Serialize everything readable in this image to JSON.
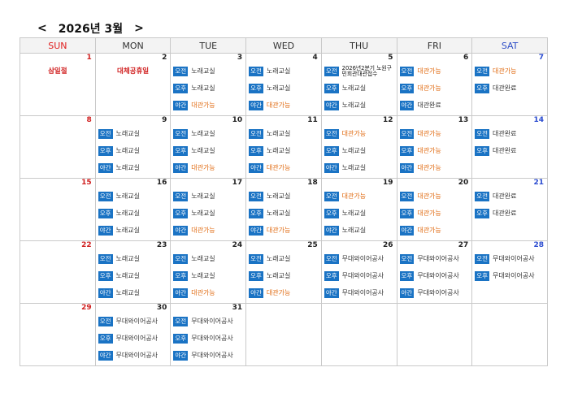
{
  "header": {
    "prev": "<",
    "title": "2026년 3월",
    "next": ">"
  },
  "colors": {
    "accent": "#1a73c4",
    "available": "#e06a10",
    "sunday": "#d01f1f",
    "saturday": "#2a4bd0"
  },
  "weekdays": [
    "SUN",
    "MON",
    "TUE",
    "WED",
    "THU",
    "FRI",
    "SAT"
  ],
  "weeks": [
    [
      {
        "day": "1",
        "note": "삼일절",
        "slots": []
      },
      {
        "day": "2",
        "note": "대체공휴일",
        "slots": []
      },
      {
        "day": "3",
        "slots": [
          {
            "b": "오전",
            "t": "노래교실",
            "k": "room"
          },
          {
            "b": "오후",
            "t": "노래교실",
            "k": "room"
          },
          {
            "b": "야간",
            "t": "대관가능",
            "k": "avail"
          }
        ]
      },
      {
        "day": "4",
        "slots": [
          {
            "b": "오전",
            "t": "노래교실",
            "k": "room"
          },
          {
            "b": "오후",
            "t": "노래교실",
            "k": "room"
          },
          {
            "b": "야간",
            "t": "대관가능",
            "k": "avail"
          }
        ]
      },
      {
        "day": "5",
        "slots": [
          {
            "b": "오전",
            "t": "2026년2분기 노원구민회관대관접수",
            "k": "notice"
          },
          {
            "b": "오후",
            "t": "노래교실",
            "k": "room"
          },
          {
            "b": "야간",
            "t": "노래교실",
            "k": "room"
          }
        ]
      },
      {
        "day": "6",
        "slots": [
          {
            "b": "오전",
            "t": "대관가능",
            "k": "avail"
          },
          {
            "b": "오후",
            "t": "대관가능",
            "k": "avail"
          },
          {
            "b": "야간",
            "t": "대관완료",
            "k": "done"
          }
        ]
      },
      {
        "day": "7",
        "slots": [
          {
            "b": "오전",
            "t": "대관가능",
            "k": "avail"
          },
          {
            "b": "오후",
            "t": "대관완료",
            "k": "done"
          }
        ]
      }
    ],
    [
      {
        "day": "8",
        "slots": []
      },
      {
        "day": "9",
        "slots": [
          {
            "b": "오전",
            "t": "노래교실",
            "k": "room"
          },
          {
            "b": "오후",
            "t": "노래교실",
            "k": "room"
          },
          {
            "b": "야간",
            "t": "노래교실",
            "k": "room"
          }
        ]
      },
      {
        "day": "10",
        "slots": [
          {
            "b": "오전",
            "t": "노래교실",
            "k": "room"
          },
          {
            "b": "오후",
            "t": "노래교실",
            "k": "room"
          },
          {
            "b": "야간",
            "t": "대관가능",
            "k": "avail"
          }
        ]
      },
      {
        "day": "11",
        "slots": [
          {
            "b": "오전",
            "t": "노래교실",
            "k": "room"
          },
          {
            "b": "오후",
            "t": "노래교실",
            "k": "room"
          },
          {
            "b": "야간",
            "t": "대관가능",
            "k": "avail"
          }
        ]
      },
      {
        "day": "12",
        "slots": [
          {
            "b": "오전",
            "t": "대관가능",
            "k": "avail"
          },
          {
            "b": "오후",
            "t": "노래교실",
            "k": "room"
          },
          {
            "b": "야간",
            "t": "노래교실",
            "k": "room"
          }
        ]
      },
      {
        "day": "13",
        "slots": [
          {
            "b": "오전",
            "t": "대관가능",
            "k": "avail"
          },
          {
            "b": "오후",
            "t": "대관가능",
            "k": "avail"
          },
          {
            "b": "야간",
            "t": "대관가능",
            "k": "avail"
          }
        ]
      },
      {
        "day": "14",
        "slots": [
          {
            "b": "오전",
            "t": "대관완료",
            "k": "done"
          },
          {
            "b": "오후",
            "t": "대관완료",
            "k": "done"
          }
        ]
      }
    ],
    [
      {
        "day": "15",
        "slots": []
      },
      {
        "day": "16",
        "slots": [
          {
            "b": "오전",
            "t": "노래교실",
            "k": "room"
          },
          {
            "b": "오후",
            "t": "노래교실",
            "k": "room"
          },
          {
            "b": "야간",
            "t": "노래교실",
            "k": "room"
          }
        ]
      },
      {
        "day": "17",
        "slots": [
          {
            "b": "오전",
            "t": "노래교실",
            "k": "room"
          },
          {
            "b": "오후",
            "t": "노래교실",
            "k": "room"
          },
          {
            "b": "야간",
            "t": "대관가능",
            "k": "avail"
          }
        ]
      },
      {
        "day": "18",
        "slots": [
          {
            "b": "오전",
            "t": "노래교실",
            "k": "room"
          },
          {
            "b": "오후",
            "t": "노래교실",
            "k": "room"
          },
          {
            "b": "야간",
            "t": "대관가능",
            "k": "avail"
          }
        ]
      },
      {
        "day": "19",
        "slots": [
          {
            "b": "오전",
            "t": "대관가능",
            "k": "avail"
          },
          {
            "b": "오후",
            "t": "노래교실",
            "k": "room"
          },
          {
            "b": "야간",
            "t": "노래교실",
            "k": "room"
          }
        ]
      },
      {
        "day": "20",
        "slots": [
          {
            "b": "오전",
            "t": "대관가능",
            "k": "avail"
          },
          {
            "b": "오후",
            "t": "대관가능",
            "k": "avail"
          },
          {
            "b": "야간",
            "t": "대관가능",
            "k": "avail"
          }
        ]
      },
      {
        "day": "21",
        "slots": [
          {
            "b": "오전",
            "t": "대관완료",
            "k": "done"
          },
          {
            "b": "오후",
            "t": "대관완료",
            "k": "done"
          }
        ]
      }
    ],
    [
      {
        "day": "22",
        "slots": []
      },
      {
        "day": "23",
        "slots": [
          {
            "b": "오전",
            "t": "노래교실",
            "k": "room"
          },
          {
            "b": "오후",
            "t": "노래교실",
            "k": "room"
          },
          {
            "b": "야간",
            "t": "노래교실",
            "k": "room"
          }
        ]
      },
      {
        "day": "24",
        "slots": [
          {
            "b": "오전",
            "t": "노래교실",
            "k": "room"
          },
          {
            "b": "오후",
            "t": "노래교실",
            "k": "room"
          },
          {
            "b": "야간",
            "t": "대관가능",
            "k": "avail"
          }
        ]
      },
      {
        "day": "25",
        "slots": [
          {
            "b": "오전",
            "t": "노래교실",
            "k": "room"
          },
          {
            "b": "오후",
            "t": "노래교실",
            "k": "room"
          },
          {
            "b": "야간",
            "t": "대관가능",
            "k": "avail"
          }
        ]
      },
      {
        "day": "26",
        "slots": [
          {
            "b": "오전",
            "t": "무대와이어공사",
            "k": "room"
          },
          {
            "b": "오후",
            "t": "무대와이어공사",
            "k": "room"
          },
          {
            "b": "야간",
            "t": "무대와이어공사",
            "k": "room"
          }
        ]
      },
      {
        "day": "27",
        "slots": [
          {
            "b": "오전",
            "t": "무대와이어공사",
            "k": "room"
          },
          {
            "b": "오후",
            "t": "무대와이어공사",
            "k": "room"
          },
          {
            "b": "야간",
            "t": "무대와이어공사",
            "k": "room"
          }
        ]
      },
      {
        "day": "28",
        "slots": [
          {
            "b": "오전",
            "t": "무대와이어공사",
            "k": "room"
          },
          {
            "b": "오후",
            "t": "무대와이어공사",
            "k": "room"
          }
        ]
      }
    ],
    [
      {
        "day": "29",
        "slots": []
      },
      {
        "day": "30",
        "slots": [
          {
            "b": "오전",
            "t": "무대와이어공사",
            "k": "room"
          },
          {
            "b": "오후",
            "t": "무대와이어공사",
            "k": "room"
          },
          {
            "b": "야간",
            "t": "무대와이어공사",
            "k": "room"
          }
        ]
      },
      {
        "day": "31",
        "slots": [
          {
            "b": "오전",
            "t": "무대와이어공사",
            "k": "room"
          },
          {
            "b": "오후",
            "t": "무대와이어공사",
            "k": "room"
          },
          {
            "b": "야간",
            "t": "무대와이어공사",
            "k": "room"
          }
        ]
      },
      {
        "day": "",
        "slots": []
      },
      {
        "day": "",
        "slots": []
      },
      {
        "day": "",
        "slots": []
      },
      {
        "day": "",
        "slots": []
      }
    ]
  ]
}
